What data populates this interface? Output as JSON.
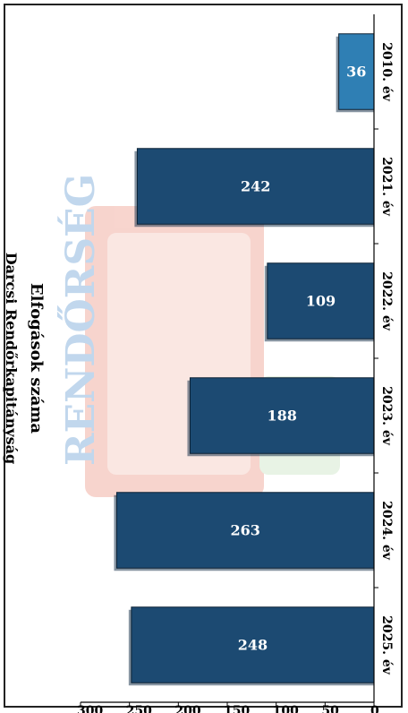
{
  "chart_data": {
    "type": "bar",
    "orientation": "horizontal",
    "title": "Elfogások száma",
    "subtitle": "Darcsi Rendőrkapitányság",
    "categories": [
      "2010. év",
      "2021. év",
      "2022. év",
      "2023. év",
      "2024. év",
      "2025. év"
    ],
    "values": [
      36,
      242,
      109,
      188,
      263,
      248
    ],
    "xlim": [
      0,
      300
    ],
    "xticks": [
      0,
      50,
      100,
      150,
      200,
      250,
      300
    ],
    "colors": {
      "bar": "#1c4a72",
      "bar_first": "#2f7fb4",
      "bar_label": "#ffffff",
      "axis": "#000000"
    },
    "grid": false,
    "legend": "none"
  },
  "watermark": {
    "logo_text": "RENDŐRSÉG"
  }
}
